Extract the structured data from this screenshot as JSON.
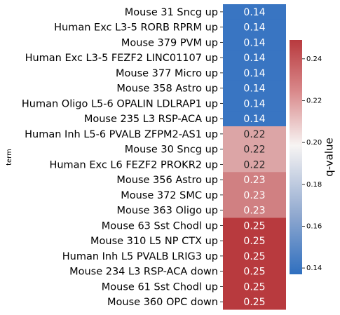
{
  "chart_data": {
    "type": "heatmap",
    "ylabel": "term",
    "rows": [
      {
        "term": "Mouse 31 Sncg up",
        "value": 0.14
      },
      {
        "term": "Human Exc L3-5 RORB RPRM up",
        "value": 0.14
      },
      {
        "term": "Mouse 379 PVM up",
        "value": 0.14
      },
      {
        "term": "Human Exc L3-5 FEZF2 LINC01107 up",
        "value": 0.14
      },
      {
        "term": "Mouse 377 Micro up",
        "value": 0.14
      },
      {
        "term": "Mouse 358 Astro up",
        "value": 0.14
      },
      {
        "term": "Human Oligo L5-6 OPALIN LDLRAP1 up",
        "value": 0.14
      },
      {
        "term": "Mouse 235 L3 RSP-ACA up",
        "value": 0.14
      },
      {
        "term": "Human Inh L5-6 PVALB ZFPM2-AS1 up",
        "value": 0.22
      },
      {
        "term": "Mouse 30 Sncg up",
        "value": 0.22
      },
      {
        "term": "Human Exc L6 FEZF2 PROKR2 up",
        "value": 0.22
      },
      {
        "term": "Mouse 356 Astro up",
        "value": 0.23
      },
      {
        "term": "Mouse 372 SMC up",
        "value": 0.23
      },
      {
        "term": "Mouse 363 Oligo up",
        "value": 0.23
      },
      {
        "term": "Mouse 63 Sst Chodl up",
        "value": 0.25
      },
      {
        "term": "Mouse 310 L5 NP CTX up",
        "value": 0.25
      },
      {
        "term": "Human Inh L5 PVALB LRIG3 up",
        "value": 0.25
      },
      {
        "term": "Mouse 234 L3 RSP-ACA down",
        "value": 0.25
      },
      {
        "term": "Mouse 61 Sst Chodl up",
        "value": 0.25
      },
      {
        "term": "Mouse 360 OPC down",
        "value": 0.25
      }
    ],
    "colorbar": {
      "label": "q-value",
      "min": 0.137,
      "max": 0.249,
      "ticks": [
        "0.14",
        "0.16",
        "0.18",
        "0.20",
        "0.22",
        "0.24"
      ],
      "colormap": "vlag",
      "low_color": "#2f6fbf",
      "mid_color": "#f7f4f3",
      "high_color": "#b83a3e"
    },
    "grid": false,
    "legend": "colorbar-right"
  }
}
